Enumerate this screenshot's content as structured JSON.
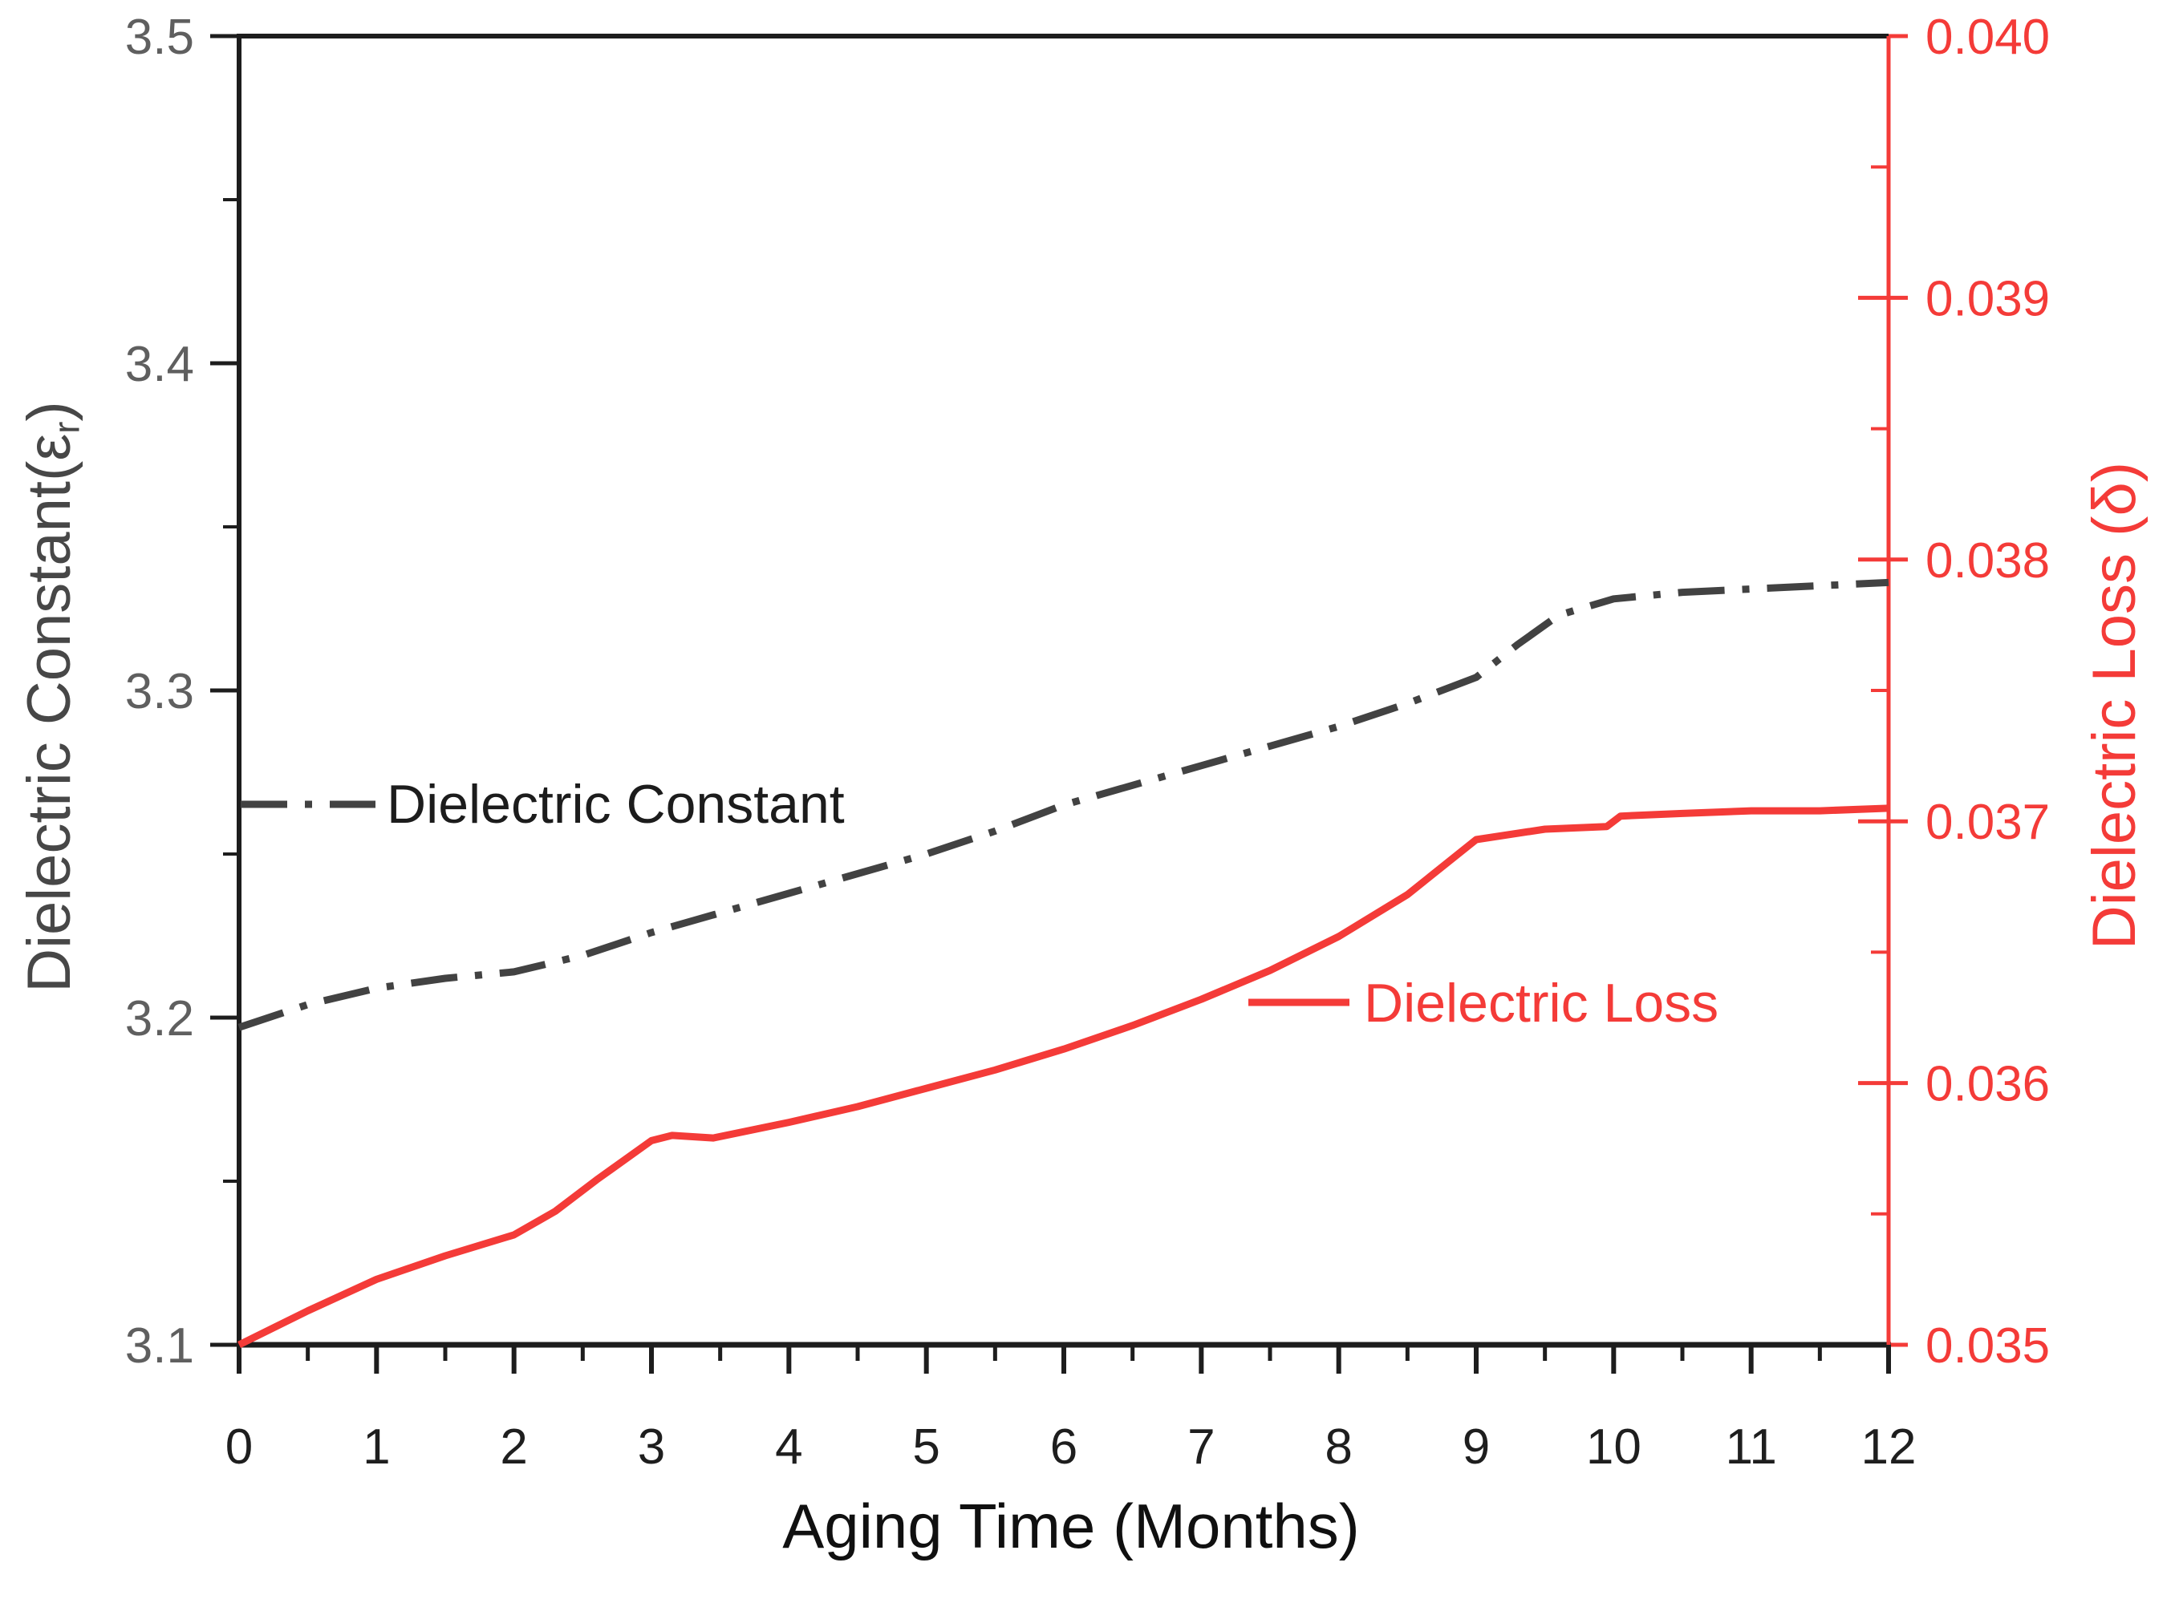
{
  "chart_data": {
    "type": "line",
    "title": "",
    "xlabel": "Aging Time (Months)",
    "x_range": [
      0,
      12
    ],
    "x_ticks": [
      0,
      1,
      2,
      3,
      4,
      5,
      6,
      7,
      8,
      9,
      10,
      11,
      12
    ],
    "x_tick_labels": [
      "0",
      "1",
      "2",
      "3",
      "4",
      "5",
      "6",
      "7",
      "8",
      "9",
      "10",
      "11",
      "12"
    ],
    "x_minor_divisions": 2,
    "grid": "off",
    "left_axis": {
      "label_pre": "Dielectric Constant(ε",
      "label_sub": "r",
      "label_post": ")",
      "range": [
        3.1,
        3.5
      ],
      "ticks": [
        3.1,
        3.2,
        3.3,
        3.4,
        3.5
      ],
      "tick_labels": [
        "3.1",
        "3.2",
        "3.3",
        "3.4",
        "3.5"
      ],
      "minor_divisions": 2,
      "axis_color": "#1d1d1d",
      "tick_label_color": "#5f5f5f"
    },
    "right_axis": {
      "label": "Dielectric Loss (δ)",
      "range": [
        0.035,
        0.04
      ],
      "ticks": [
        0.035,
        0.036,
        0.037,
        0.038,
        0.039,
        0.04
      ],
      "tick_labels": [
        "0.035",
        "0.036",
        "0.037",
        "0.038",
        "0.039",
        "0.040"
      ],
      "minor_divisions": 2,
      "axis_color": "#f43b38",
      "tick_label_color": "#f43b38"
    },
    "series": [
      {
        "name": "Dielectric Constant",
        "axis": "left",
        "style": "dashdot",
        "color": "#424242",
        "x": [
          0,
          0.5,
          1,
          1.5,
          2,
          2.5,
          3,
          3.5,
          4,
          4.5,
          5,
          5.5,
          6,
          6.5,
          7,
          7.5,
          8,
          8.5,
          9,
          9.3,
          9.6,
          10,
          10.5,
          11,
          11.5,
          12
        ],
        "y": [
          3.197,
          3.204,
          3.209,
          3.212,
          3.214,
          3.219,
          3.226,
          3.232,
          3.238,
          3.244,
          3.25,
          3.257,
          3.265,
          3.271,
          3.277,
          3.283,
          3.289,
          3.296,
          3.304,
          3.314,
          3.323,
          3.328,
          3.33,
          3.331,
          3.332,
          3.333
        ]
      },
      {
        "name": "Dielectric Loss",
        "axis": "right",
        "style": "solid",
        "color": "#f43b38",
        "x": [
          0,
          0.5,
          1,
          1.5,
          2,
          2.3,
          2.6,
          3,
          3.15,
          3.45,
          4,
          4.5,
          5,
          5.5,
          6,
          6.5,
          7,
          7.5,
          8,
          8.5,
          9,
          9.5,
          9.95,
          10.05,
          10.5,
          11,
          11.5,
          12
        ],
        "y": [
          0.035,
          0.03513,
          0.03525,
          0.03534,
          0.03542,
          0.03551,
          0.03563,
          0.03578,
          0.0358,
          0.03579,
          0.03585,
          0.03591,
          0.03598,
          0.03605,
          0.03613,
          0.03622,
          0.03632,
          0.03643,
          0.03656,
          0.03672,
          0.03693,
          0.03697,
          0.03698,
          0.03702,
          0.03703,
          0.03704,
          0.03704,
          0.03705
        ]
      }
    ],
    "legend": [
      {
        "label": "Dielectric Constant",
        "sample": {
          "x1": 300,
          "y1": 1003,
          "x2": 468,
          "style": "dashdot",
          "color": "#424242"
        }
      },
      {
        "label": "Dielectric Loss",
        "sample": {
          "x1": 1556,
          "y1": 1250,
          "x2": 1682,
          "style": "solid",
          "color": "#f43b38"
        }
      }
    ],
    "geometry": {
      "plot_left": 298,
      "plot_top": 45,
      "plot_right": 2354,
      "plot_bottom": 1677,
      "tick_major_len": 36,
      "tick_minor_len": 20,
      "right_tick_out_len": 24
    }
  }
}
